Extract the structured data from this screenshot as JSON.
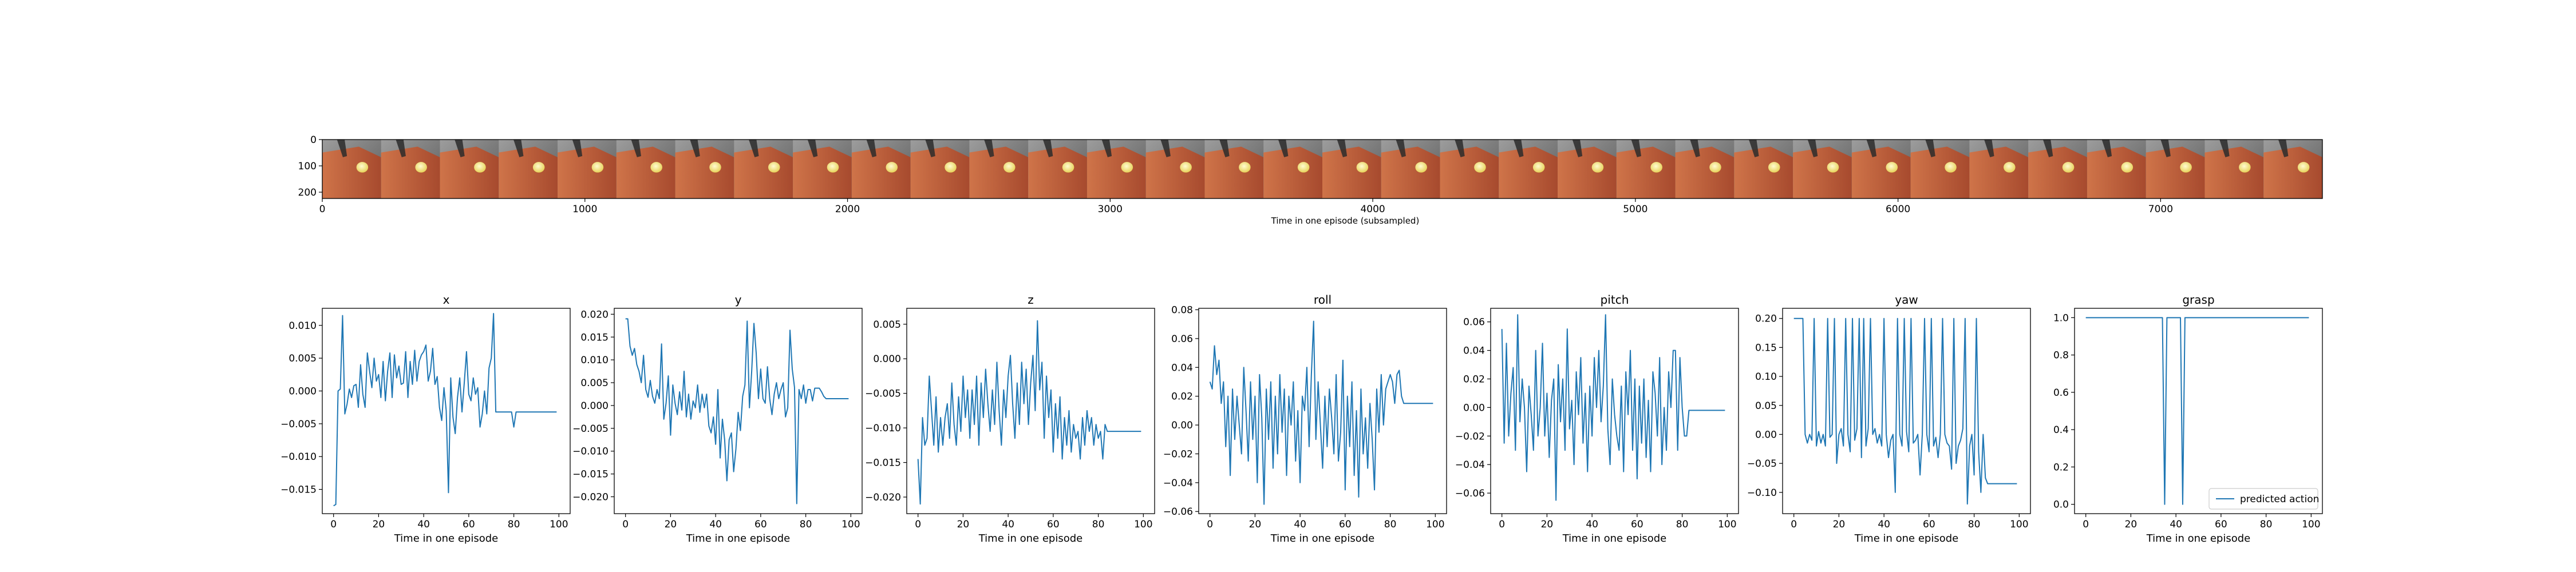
{
  "chart_data": [
    {
      "type": "image_strip",
      "xlabel": "Time in one episode (subsampled)",
      "xticks": [
        0,
        1000,
        2000,
        3000,
        4000,
        5000,
        6000,
        7000
      ],
      "yticks": [
        0,
        100,
        200
      ],
      "xlim": [
        0,
        7616
      ],
      "ylim": [
        224,
        0
      ],
      "frame_count": 34
    },
    {
      "type": "line",
      "title": "x",
      "xlabel": "Time in one episode",
      "xlim": [
        -5,
        105
      ],
      "ylim": [
        -0.0187,
        0.0126
      ],
      "xticks": [
        0,
        20,
        40,
        60,
        80,
        100
      ],
      "yticks": [
        -0.015,
        -0.01,
        -0.005,
        0.0,
        0.005,
        0.01
      ],
      "ytick_labels": [
        "−0.015",
        "−0.010",
        "−0.005",
        "0.000",
        "0.005",
        "0.010"
      ],
      "series": [
        {
          "values": [
            -0.0175,
            -0.0173,
            0.0,
            0.0003,
            0.0115,
            -0.0035,
            -0.002,
            0.0003,
            -0.001,
            0.0008,
            0.001,
            -0.0025,
            0.004,
            -0.0005,
            -0.0025,
            0.0058,
            0.003,
            0.0005,
            0.005,
            0.0015,
            0.0025,
            -0.001,
            0.0045,
            -0.0015,
            0.003,
            0.0058,
            -0.001,
            0.0055,
            0.002,
            0.0038,
            0.001,
            0.0012,
            0.006,
            -0.001,
            0.0045,
            0.001,
            0.0062,
            0.0015,
            0.0045,
            0.0055,
            0.006,
            0.007,
            0.0015,
            0.003,
            0.0065,
            0.001,
            0.0022,
            -0.0025,
            -0.0045,
            0.0005,
            -0.003,
            -0.0155,
            0.002,
            -0.004,
            -0.0065,
            -0.001,
            0.002,
            -0.0032,
            0.0012,
            0.006,
            -0.0005,
            -0.0015,
            0.002,
            -0.0005,
            0.0005,
            -0.0055,
            -0.0035,
            0.0,
            -0.0035,
            0.0035,
            0.005,
            0.0118,
            -0.0032,
            -0.0032,
            -0.0032,
            -0.0032,
            -0.0032,
            -0.0032,
            -0.0032,
            -0.0032,
            -0.0055,
            -0.0032,
            -0.0032,
            -0.0032,
            -0.0032,
            -0.0032,
            -0.0032,
            -0.0032,
            -0.0032,
            -0.0032,
            -0.0032,
            -0.0032,
            -0.0032,
            -0.0032,
            -0.0032,
            -0.0032,
            -0.0032,
            -0.0032,
            -0.0032,
            -0.0032
          ]
        }
      ]
    },
    {
      "type": "line",
      "title": "y",
      "xlabel": "Time in one episode",
      "xlim": [
        -5,
        105
      ],
      "ylim": [
        -0.0237,
        0.0213
      ],
      "xticks": [
        0,
        20,
        40,
        60,
        80,
        100
      ],
      "yticks": [
        -0.02,
        -0.015,
        -0.01,
        -0.005,
        0.0,
        0.005,
        0.01,
        0.015,
        0.02
      ],
      "ytick_labels": [
        "−0.020",
        "−0.015",
        "−0.010",
        "−0.005",
        "0.000",
        "0.005",
        "0.010",
        "0.015",
        "0.020"
      ],
      "series": [
        {
          "values": [
            0.019,
            0.019,
            0.013,
            0.011,
            0.0125,
            0.009,
            0.0075,
            0.005,
            0.011,
            0.0035,
            0.0018,
            0.0055,
            0.002,
            0.0005,
            0.0035,
            0.0015,
            0.0135,
            -0.003,
            0.0005,
            0.0065,
            -0.0065,
            0.0045,
            0.0005,
            -0.002,
            0.003,
            -0.001,
            0.0075,
            -0.0025,
            0.0025,
            -0.003,
            0.001,
            -0.0005,
            0.0045,
            -0.0015,
            0.0025,
            -0.0005,
            0.0025,
            -0.0045,
            -0.006,
            -0.0025,
            -0.0085,
            0.0035,
            -0.0115,
            -0.003,
            -0.0075,
            -0.0165,
            -0.0075,
            -0.006,
            -0.0145,
            -0.0095,
            -0.0015,
            -0.0055,
            0.002,
            0.0045,
            0.0185,
            -0.0005,
            0.0075,
            0.018,
            0.0115,
            0.0015,
            0.008,
            0.0015,
            0.0005,
            0.0085,
            0.0015,
            -0.002,
            0.0025,
            0.005,
            0.0015,
            0.0035,
            0.005,
            -0.0025,
            -0.0005,
            0.0165,
            0.008,
            0.004,
            -0.0215,
            0.0035,
            0.0015,
            0.0045,
            0.0005,
            0.0035,
            0.0035,
            0.001,
            0.0038,
            0.0038,
            0.0038,
            0.003,
            0.002,
            0.0015,
            0.0015,
            0.0015,
            0.0015,
            0.0015,
            0.0015,
            0.0015,
            0.0015,
            0.0015,
            0.0015,
            0.0015
          ]
        }
      ]
    },
    {
      "type": "line",
      "title": "z",
      "xlabel": "Time in one episode",
      "xlim": [
        -5,
        105
      ],
      "ylim": [
        -0.0224,
        0.0073
      ],
      "xticks": [
        0,
        20,
        40,
        60,
        80,
        100
      ],
      "yticks": [
        -0.02,
        -0.015,
        -0.01,
        -0.005,
        0.0,
        0.005
      ],
      "ytick_labels": [
        "−0.020",
        "−0.015",
        "−0.010",
        "−0.005",
        "0.000",
        "0.005"
      ],
      "series": [
        {
          "values": [
            -0.0145,
            -0.021,
            -0.0085,
            -0.0125,
            -0.0115,
            -0.0025,
            -0.0075,
            -0.0125,
            -0.0055,
            -0.0135,
            -0.0085,
            -0.0125,
            -0.0085,
            -0.0065,
            -0.0115,
            -0.0035,
            -0.0095,
            -0.0125,
            -0.0055,
            -0.0105,
            -0.0025,
            -0.0085,
            -0.0045,
            -0.0115,
            -0.0045,
            -0.0095,
            -0.0025,
            -0.0125,
            -0.0035,
            -0.0085,
            -0.0015,
            -0.0065,
            -0.0105,
            -0.0045,
            -0.0095,
            -0.0005,
            -0.0075,
            -0.0125,
            -0.0045,
            -0.0085,
            -0.0025,
            0.0005,
            -0.0065,
            -0.0115,
            -0.0035,
            -0.0095,
            -0.0005,
            -0.0065,
            -0.0015,
            -0.0095,
            -0.0035,
            0.0005,
            -0.0075,
            0.0055,
            -0.0045,
            -0.0005,
            -0.0115,
            -0.0025,
            -0.0085,
            -0.0045,
            -0.0135,
            -0.0065,
            -0.0115,
            -0.0055,
            -0.0145,
            -0.0085,
            -0.0125,
            -0.0075,
            -0.0135,
            -0.0095,
            -0.0115,
            -0.0105,
            -0.0145,
            -0.0085,
            -0.0125,
            -0.0075,
            -0.0105,
            -0.0085,
            -0.0125,
            -0.0095,
            -0.0115,
            -0.0105,
            -0.0145,
            -0.0095,
            -0.0105,
            -0.0105,
            -0.0105,
            -0.0105,
            -0.0105,
            -0.0105,
            -0.0105,
            -0.0105,
            -0.0105,
            -0.0105,
            -0.0105,
            -0.0105,
            -0.0105,
            -0.0105,
            -0.0105,
            -0.0105
          ]
        }
      ]
    },
    {
      "type": "line",
      "title": "roll",
      "xlabel": "Time in one episode",
      "xlim": [
        -5,
        105
      ],
      "ylim": [
        -0.0615,
        0.081
      ],
      "xticks": [
        0,
        20,
        40,
        60,
        80,
        100
      ],
      "yticks": [
        -0.06,
        -0.04,
        -0.02,
        0.0,
        0.02,
        0.04,
        0.06,
        0.08
      ],
      "ytick_labels": [
        "−0.06",
        "−0.04",
        "−0.02",
        "0.00",
        "0.02",
        "0.04",
        "0.06",
        "0.08"
      ],
      "series": [
        {
          "values": [
            0.03,
            0.025,
            0.055,
            0.035,
            0.045,
            0.015,
            0.03,
            -0.015,
            0.02,
            -0.035,
            0.025,
            -0.01,
            0.02,
            0.0,
            -0.02,
            0.04,
            0.01,
            -0.025,
            0.03,
            -0.01,
            0.02,
            -0.04,
            0.035,
            0.005,
            -0.055,
            0.025,
            -0.01,
            0.03,
            -0.03,
            0.02,
            -0.02,
            0.035,
            -0.005,
            0.025,
            -0.035,
            0.02,
            0.0,
            0.03,
            -0.025,
            0.01,
            -0.04,
            0.02,
            0.01,
            0.04,
            -0.015,
            0.035,
            0.072,
            -0.01,
            0.03,
            0.0,
            -0.03,
            0.02,
            -0.015,
            0.025,
            0.005,
            -0.02,
            0.035,
            -0.025,
            -0.005,
            0.045,
            -0.045,
            0.02,
            -0.015,
            0.03,
            -0.035,
            0.01,
            -0.05,
            0.025,
            -0.02,
            0.005,
            -0.03,
            0.015,
            -0.01,
            -0.045,
            0.025,
            -0.005,
            0.035,
            0.0,
            0.025,
            0.03,
            0.035,
            0.03,
            0.015,
            0.035,
            0.038,
            0.02,
            0.015,
            0.015,
            0.015,
            0.015,
            0.015,
            0.015,
            0.015,
            0.015,
            0.015,
            0.015,
            0.015,
            0.015,
            0.015,
            0.015
          ]
        }
      ]
    },
    {
      "type": "line",
      "title": "pitch",
      "xlabel": "Time in one episode",
      "xlim": [
        -5,
        105
      ],
      "ylim": [
        -0.0744,
        0.0695
      ],
      "xticks": [
        0,
        20,
        40,
        60,
        80,
        100
      ],
      "yticks": [
        -0.06,
        -0.04,
        -0.02,
        0.0,
        0.02,
        0.04,
        0.06
      ],
      "ytick_labels": [
        "−0.06",
        "−0.04",
        "−0.02",
        "0.00",
        "0.02",
        "0.04",
        "0.06"
      ],
      "series": [
        {
          "values": [
            0.055,
            -0.025,
            0.045,
            -0.02,
            0.01,
            0.028,
            -0.03,
            0.065,
            -0.01,
            0.02,
            0.0,
            -0.045,
            0.015,
            -0.005,
            -0.03,
            0.04,
            -0.02,
            0.0,
            0.045,
            -0.02,
            0.01,
            -0.035,
            0.005,
            0.02,
            -0.065,
            0.03,
            -0.01,
            0.02,
            -0.03,
            0.055,
            -0.015,
            0.005,
            -0.04,
            0.025,
            -0.005,
            0.035,
            -0.025,
            0.01,
            -0.045,
            0.015,
            -0.02,
            0.035,
            0.0,
            0.04,
            -0.01,
            0.015,
            0.065,
            -0.015,
            -0.04,
            0.02,
            -0.005,
            -0.02,
            -0.03,
            0.015,
            -0.045,
            0.025,
            -0.005,
            0.04,
            -0.03,
            0.02,
            -0.05,
            0.015,
            -0.025,
            0.02,
            -0.035,
            0.005,
            -0.045,
            0.025,
            0.01,
            -0.02,
            0.035,
            -0.04,
            0.0,
            -0.03,
            0.025,
            0.0,
            0.04,
            0.04,
            -0.03,
            0.035,
            0.0,
            -0.02,
            -0.02,
            -0.002,
            -0.002,
            -0.002,
            -0.002,
            -0.002,
            -0.002,
            -0.002,
            -0.002,
            -0.002,
            -0.002,
            -0.002,
            -0.002,
            -0.002,
            -0.002,
            -0.002,
            -0.002,
            -0.002
          ]
        }
      ]
    },
    {
      "type": "line",
      "title": "yaw",
      "xlabel": "Time in one episode",
      "xlim": [
        -5,
        105
      ],
      "ylim": [
        -0.1367,
        0.2175
      ],
      "xticks": [
        0,
        20,
        40,
        60,
        80,
        100
      ],
      "yticks": [
        -0.1,
        -0.05,
        0.0,
        0.05,
        0.1,
        0.15,
        0.2
      ],
      "ytick_labels": [
        "−0.10",
        "−0.05",
        "0.00",
        "0.05",
        "0.10",
        "0.15",
        "0.20"
      ],
      "series": [
        {
          "values": [
            0.2,
            0.2,
            0.2,
            0.2,
            0.2,
            0.0,
            -0.015,
            0.0,
            -0.01,
            0.2,
            -0.02,
            0.005,
            -0.015,
            0.0,
            -0.02,
            0.2,
            -0.005,
            0.0,
            0.2,
            -0.05,
            0.0,
            0.01,
            -0.02,
            0.2,
            0.0,
            -0.03,
            0.2,
            -0.01,
            0.01,
            0.2,
            -0.04,
            0.2,
            -0.02,
            0.01,
            0.2,
            0.0,
            0.01,
            -0.015,
            0.0,
            -0.02,
            0.2,
            0.0,
            -0.04,
            -0.01,
            0.0,
            -0.1,
            0.2,
            0.0,
            -0.02,
            0.2,
            0.005,
            -0.03,
            0.2,
            -0.015,
            -0.01,
            0.0,
            -0.07,
            0.0,
            0.2,
            0.0,
            -0.03,
            0.2,
            -0.02,
            -0.005,
            -0.04,
            0.0,
            0.2,
            0.0,
            -0.015,
            -0.02,
            -0.06,
            0.2,
            -0.05,
            -0.02,
            -0.01,
            0.01,
            0.2,
            -0.12,
            -0.02,
            0.0,
            -0.07,
            0.2,
            -0.03,
            -0.1,
            0.0,
            -0.075,
            -0.085,
            -0.085,
            -0.085,
            -0.085,
            -0.085,
            -0.085,
            -0.085,
            -0.085,
            -0.085,
            -0.085,
            -0.085,
            -0.085,
            -0.085,
            -0.085
          ]
        }
      ]
    },
    {
      "type": "line",
      "title": "grasp",
      "xlabel": "Time in one episode",
      "xlim": [
        -5,
        105
      ],
      "ylim": [
        -0.05,
        1.05
      ],
      "xticks": [
        0,
        20,
        40,
        60,
        80,
        100
      ],
      "yticks": [
        0.0,
        0.2,
        0.4,
        0.6,
        0.8,
        1.0
      ],
      "ytick_labels": [
        "0.0",
        "0.2",
        "0.4",
        "0.6",
        "0.8",
        "1.0"
      ],
      "legend": {
        "label": "predicted action",
        "loc": "lower right"
      },
      "series": [
        {
          "name": "predicted action",
          "values": [
            1,
            1,
            1,
            1,
            1,
            1,
            1,
            1,
            1,
            1,
            1,
            1,
            1,
            1,
            1,
            1,
            1,
            1,
            1,
            1,
            1,
            1,
            1,
            1,
            1,
            1,
            1,
            1,
            1,
            1,
            1,
            1,
            1,
            1,
            1,
            0,
            1,
            1,
            1,
            1,
            1,
            1,
            1,
            0,
            1,
            1,
            1,
            1,
            1,
            1,
            1,
            1,
            1,
            1,
            1,
            1,
            1,
            1,
            1,
            1,
            1,
            1,
            1,
            1,
            1,
            1,
            1,
            1,
            1,
            1,
            1,
            1,
            1,
            1,
            1,
            1,
            1,
            1,
            1,
            1,
            1,
            1,
            1,
            1,
            1,
            1,
            1,
            1,
            1,
            1,
            1,
            1,
            1,
            1,
            1,
            1,
            1,
            1,
            1,
            1
          ]
        }
      ]
    }
  ],
  "colors": {
    "line": "#1f77b4",
    "table": "#b55636",
    "table_highlight": "#cf7449",
    "background_dark": "#5c5c5c",
    "background_light": "#9d9d9d",
    "ball": "#f4ec8a",
    "robot": "#2c2c2c"
  }
}
